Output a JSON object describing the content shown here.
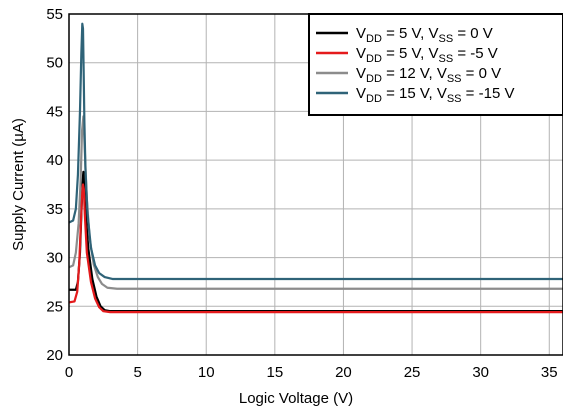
{
  "chart_data": {
    "type": "line",
    "xlabel": "Logic Voltage (V)",
    "ylabel": "Supply Current (µA)",
    "xlim": [
      0,
      36
    ],
    "ylim": [
      20,
      55
    ],
    "xticks": [
      0,
      5,
      10,
      15,
      20,
      25,
      30,
      35
    ],
    "yticks": [
      20,
      25,
      30,
      35,
      40,
      45,
      50,
      55
    ],
    "grid": true,
    "legend_position": "top-right",
    "series": [
      {
        "name": "VDD = 5 V, VSS = 0 V",
        "legend": {
          "p1": "V",
          "s1": "DD",
          "p2": " = 5 V, V",
          "s2": "SS",
          "p3": " = 0 V"
        },
        "color": "#000000",
        "x": [
          0,
          0.5,
          0.65,
          0.8,
          0.9,
          1.0,
          1.05,
          1.1,
          1.2,
          1.4,
          1.7,
          2.0,
          2.3,
          2.6,
          3.0,
          5,
          10,
          20,
          30,
          36
        ],
        "y": [
          26.7,
          26.7,
          27.5,
          30.5,
          34.5,
          38.0,
          38.8,
          38.2,
          35.0,
          31.0,
          27.8,
          26.0,
          25.0,
          24.6,
          24.5,
          24.5,
          24.5,
          24.5,
          24.5,
          24.5
        ]
      },
      {
        "name": "VDD = 5 V, VSS = -5 V",
        "legend": {
          "p1": "V",
          "s1": "DD",
          "p2": " = 5 V, V",
          "s2": "SS",
          "p3": " = -5 V"
        },
        "color": "#e41a1c",
        "x": [
          0,
          0.4,
          0.6,
          0.75,
          0.85,
          0.95,
          1.02,
          1.08,
          1.15,
          1.3,
          1.6,
          1.9,
          2.2,
          2.5,
          3.0,
          5,
          10,
          20,
          30,
          36
        ],
        "y": [
          25.4,
          25.5,
          26.5,
          29.5,
          33.0,
          36.5,
          37.5,
          37.0,
          34.5,
          30.5,
          27.5,
          25.8,
          24.9,
          24.5,
          24.4,
          24.4,
          24.4,
          24.4,
          24.4,
          24.4
        ]
      },
      {
        "name": "VDD = 12 V, VSS = 0 V",
        "legend": {
          "p1": "V",
          "s1": "DD",
          "p2": " = 12 V, V",
          "s2": "SS",
          "p3": " = 0 V"
        },
        "color": "#8c8c8c",
        "x": [
          0,
          0.3,
          0.5,
          0.7,
          0.85,
          0.95,
          1.05,
          1.15,
          1.3,
          1.5,
          1.8,
          2.1,
          2.4,
          2.8,
          3.5,
          5,
          10,
          20,
          30,
          36
        ],
        "y": [
          29.0,
          29.2,
          30.5,
          33.5,
          38.0,
          43.0,
          44.5,
          41.0,
          36.0,
          32.0,
          29.3,
          28.0,
          27.3,
          26.9,
          26.8,
          26.8,
          26.8,
          26.8,
          26.8,
          26.8
        ]
      },
      {
        "name": "VDD = 15 V, VSS = -15 V",
        "legend": {
          "p1": "V",
          "s1": "DD",
          "p2": " = 15 V, V",
          "s2": "SS",
          "p3": " = -15 V"
        },
        "color": "#2f6378",
        "x": [
          0,
          0.3,
          0.5,
          0.65,
          0.8,
          0.9,
          0.97,
          1.02,
          1.07,
          1.12,
          1.2,
          1.35,
          1.6,
          1.9,
          2.2,
          2.6,
          3.2,
          5,
          10,
          20,
          30,
          36
        ],
        "y": [
          33.6,
          33.8,
          35.0,
          38.5,
          45.0,
          51.0,
          54.0,
          53.5,
          49.0,
          44.0,
          39.0,
          34.5,
          31.0,
          29.2,
          28.4,
          28.0,
          27.8,
          27.8,
          27.8,
          27.8,
          27.8,
          27.8
        ]
      }
    ]
  }
}
